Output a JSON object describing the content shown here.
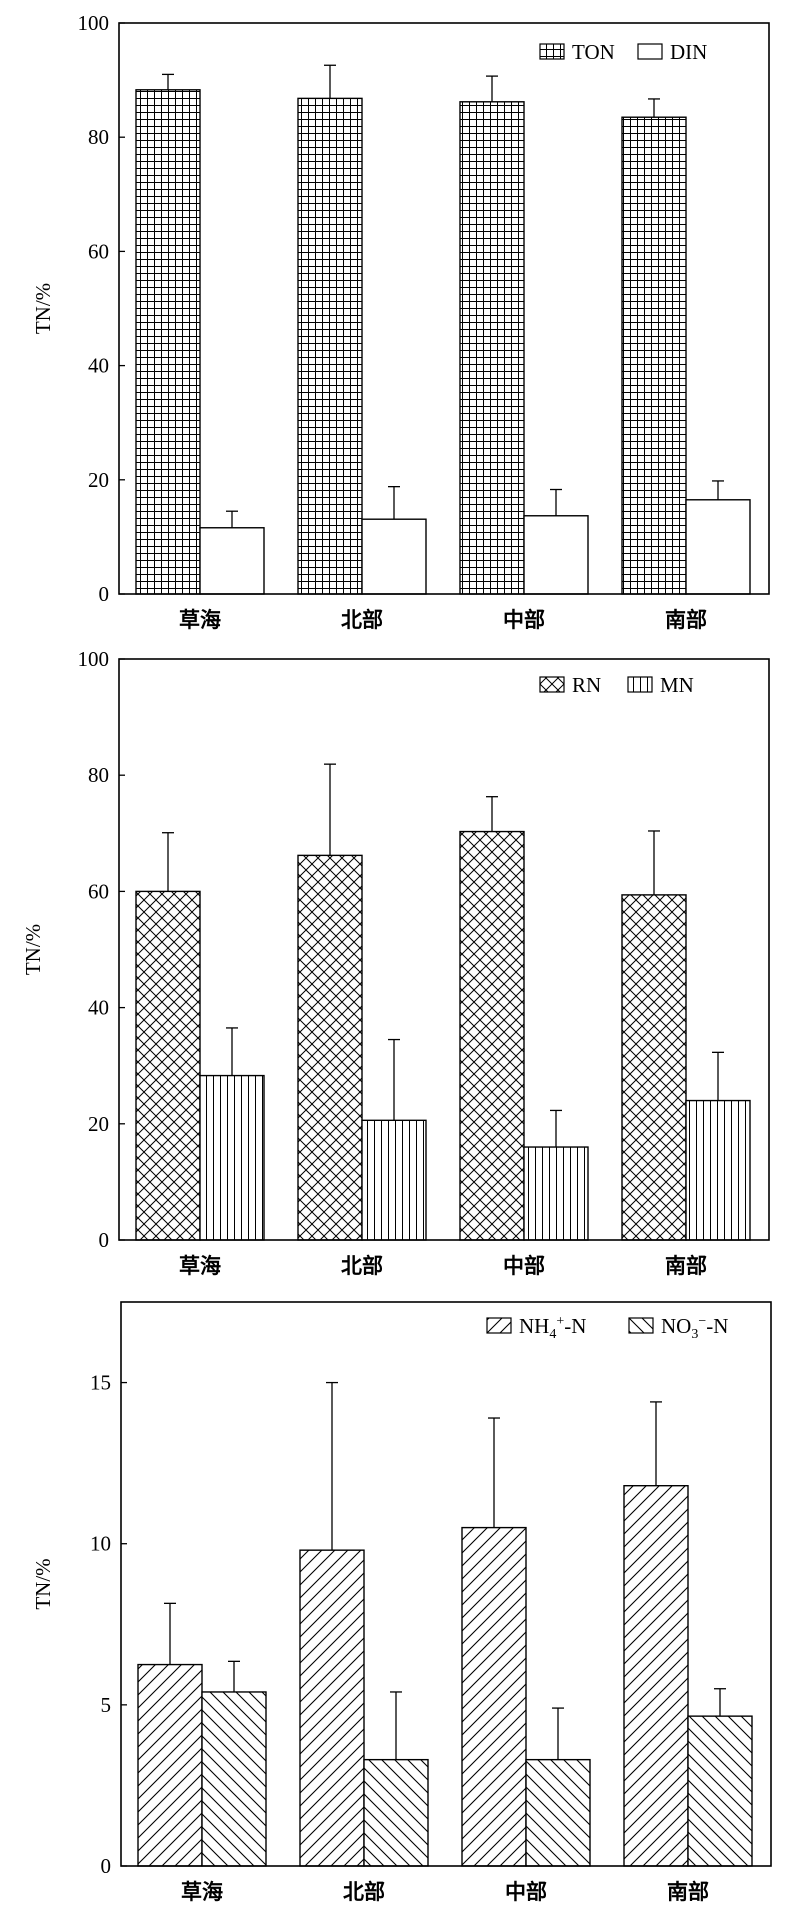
{
  "chart_data": [
    {
      "type": "bar",
      "title": "",
      "ylabel": "TN/%",
      "xlabel": "",
      "categories": [
        "草海",
        "北部",
        "中部",
        "南部"
      ],
      "ylim": [
        0,
        100
      ],
      "yticks": [
        0,
        20,
        40,
        60,
        80,
        100
      ],
      "legend_position": "top-right",
      "series": [
        {
          "name": "TON",
          "pattern": "grid",
          "values": [
            88.3,
            86.8,
            86.2,
            83.5
          ],
          "errors": [
            2.7,
            5.8,
            4.5,
            3.2
          ]
        },
        {
          "name": "DIN",
          "pattern": "none",
          "values": [
            11.6,
            13.1,
            13.7,
            16.5
          ],
          "errors": [
            2.9,
            5.7,
            4.6,
            3.3
          ]
        }
      ]
    },
    {
      "type": "bar",
      "title": "",
      "ylabel": "TN/%",
      "xlabel": "",
      "categories": [
        "草海",
        "北部",
        "中部",
        "南部"
      ],
      "ylim": [
        0,
        100
      ],
      "yticks": [
        0,
        20,
        40,
        60,
        80,
        100
      ],
      "legend_position": "top-right",
      "series": [
        {
          "name": "RN",
          "pattern": "crosshatch",
          "values": [
            60.0,
            66.2,
            70.3,
            59.4
          ],
          "errors": [
            10.1,
            15.7,
            6.0,
            11.0
          ]
        },
        {
          "name": "MN",
          "pattern": "vertical",
          "values": [
            28.3,
            20.6,
            16.0,
            24.0
          ],
          "errors": [
            8.2,
            13.9,
            6.3,
            8.3
          ]
        }
      ]
    },
    {
      "type": "bar",
      "title": "",
      "ylabel": "TN/%",
      "xlabel": "",
      "categories": [
        "草海",
        "北部",
        "中部",
        "南部"
      ],
      "ylim": [
        0,
        17.5
      ],
      "yticks": [
        0,
        5,
        10,
        15
      ],
      "legend_position": "top-right",
      "series": [
        {
          "name": "NH",
          "name_sup": "4",
          "name_sup2": "+",
          "name_tail": "-N",
          "pattern": "forward",
          "values": [
            6.25,
            9.8,
            10.5,
            11.8
          ],
          "errors": [
            1.9,
            5.2,
            3.4,
            2.6
          ]
        },
        {
          "name": "NO",
          "name_sup": "3",
          "name_sup2": "−",
          "name_tail": "-N",
          "pattern": "back",
          "values": [
            5.4,
            3.3,
            3.3,
            4.65
          ],
          "errors": [
            0.95,
            2.1,
            1.6,
            0.85
          ]
        }
      ]
    }
  ]
}
